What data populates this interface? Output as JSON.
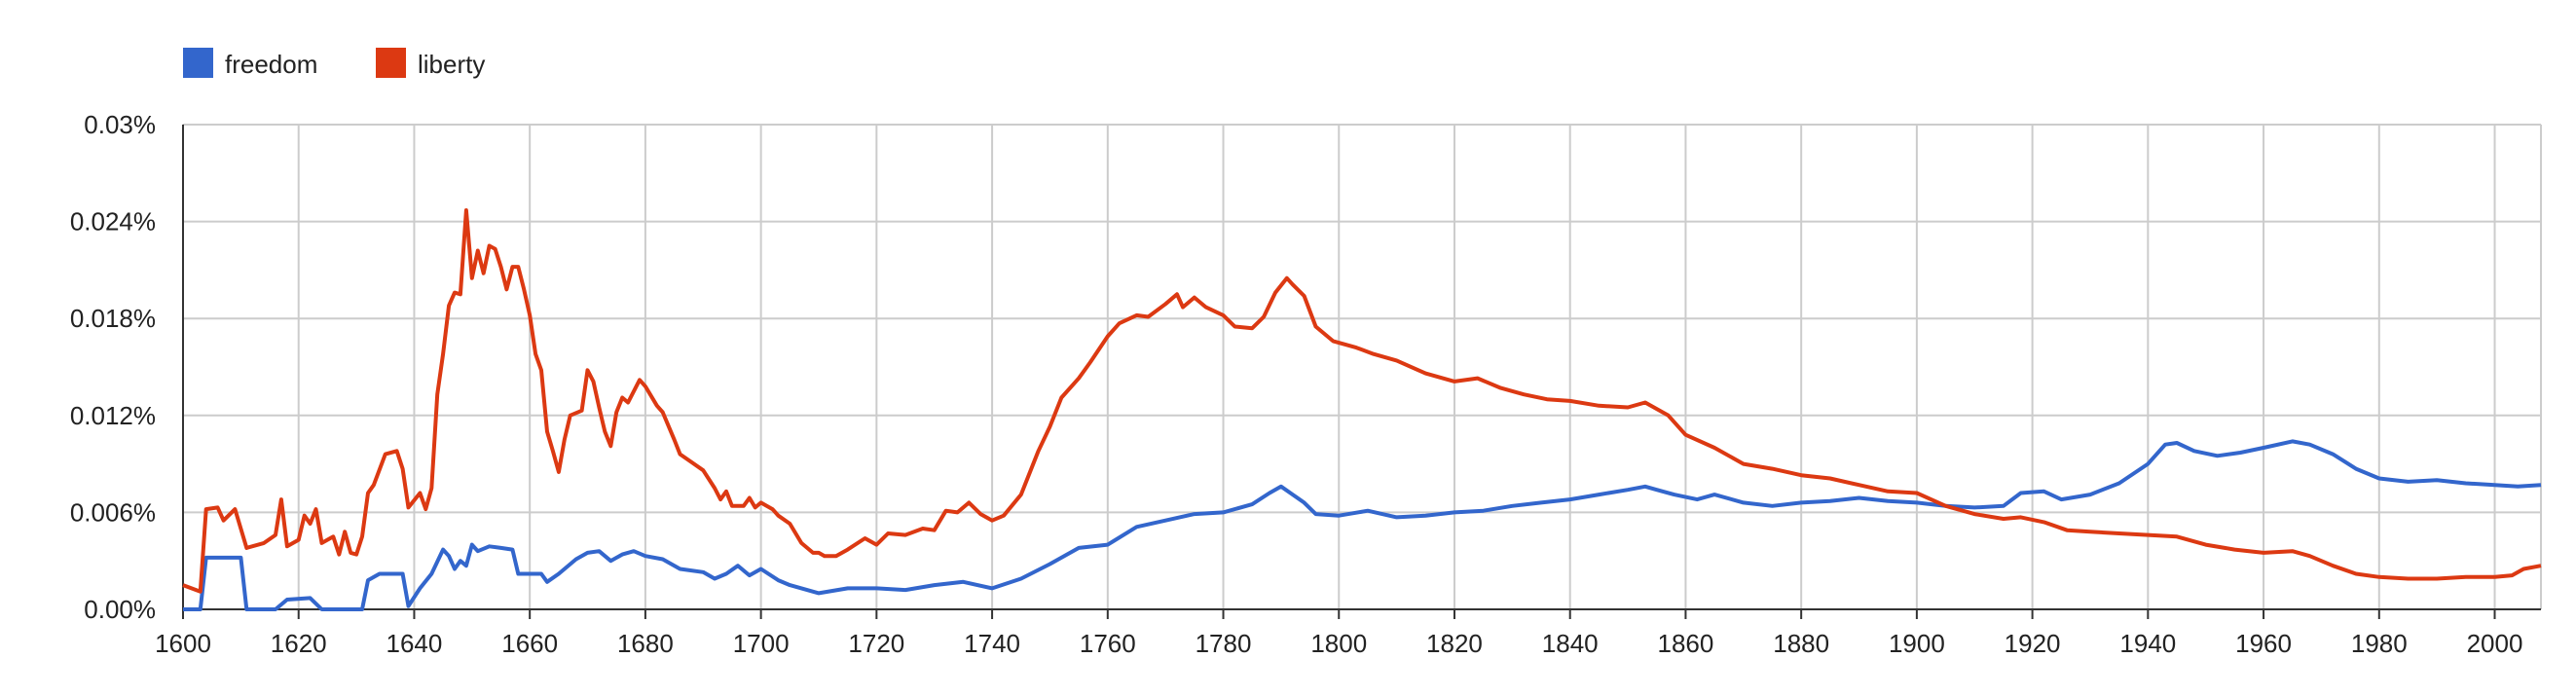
{
  "chart_data": {
    "type": "line",
    "title": "",
    "xlabel": "",
    "ylabel": "",
    "xlim": [
      1600,
      2008
    ],
    "ylim": [
      0,
      0.03
    ],
    "x_ticks": [
      1600,
      1620,
      1640,
      1660,
      1680,
      1700,
      1720,
      1740,
      1760,
      1780,
      1800,
      1820,
      1840,
      1860,
      1880,
      1900,
      1920,
      1940,
      1960,
      1980,
      2000
    ],
    "y_ticks": [
      0,
      0.006,
      0.012,
      0.018,
      0.024,
      0.03
    ],
    "y_tick_labels": [
      "0.00%",
      "0.006%",
      "0.012%",
      "0.018%",
      "0.024%",
      "0.03%"
    ],
    "grid": true,
    "legend_position": "top-left",
    "series": [
      {
        "name": "freedom",
        "color": "#3366cc",
        "points": [
          [
            1600,
            0.0
          ],
          [
            1603,
            0.0
          ],
          [
            1604,
            0.0032
          ],
          [
            1610,
            0.0032
          ],
          [
            1611,
            0.0
          ],
          [
            1616,
            0.0
          ],
          [
            1618,
            0.0006
          ],
          [
            1622,
            0.0007
          ],
          [
            1624,
            0.0
          ],
          [
            1631,
            0.0
          ],
          [
            1632,
            0.0018
          ],
          [
            1634,
            0.0022
          ],
          [
            1638,
            0.0022
          ],
          [
            1639,
            0.0002
          ],
          [
            1641,
            0.0013
          ],
          [
            1643,
            0.0022
          ],
          [
            1645,
            0.0037
          ],
          [
            1646,
            0.0033
          ],
          [
            1647,
            0.0025
          ],
          [
            1648,
            0.003
          ],
          [
            1649,
            0.0027
          ],
          [
            1650,
            0.004
          ],
          [
            1651,
            0.0036
          ],
          [
            1653,
            0.0039
          ],
          [
            1655,
            0.0038
          ],
          [
            1657,
            0.0037
          ],
          [
            1658,
            0.0022
          ],
          [
            1662,
            0.0022
          ],
          [
            1663,
            0.0017
          ],
          [
            1665,
            0.0022
          ],
          [
            1668,
            0.0031
          ],
          [
            1670,
            0.0035
          ],
          [
            1672,
            0.0036
          ],
          [
            1674,
            0.003
          ],
          [
            1676,
            0.0034
          ],
          [
            1678,
            0.0036
          ],
          [
            1680,
            0.0033
          ],
          [
            1683,
            0.0031
          ],
          [
            1686,
            0.0025
          ],
          [
            1690,
            0.0023
          ],
          [
            1692,
            0.0019
          ],
          [
            1694,
            0.0022
          ],
          [
            1696,
            0.0027
          ],
          [
            1698,
            0.0021
          ],
          [
            1700,
            0.0025
          ],
          [
            1703,
            0.0018
          ],
          [
            1705,
            0.0015
          ],
          [
            1710,
            0.001
          ],
          [
            1715,
            0.0013
          ],
          [
            1720,
            0.0013
          ],
          [
            1725,
            0.0012
          ],
          [
            1730,
            0.0015
          ],
          [
            1735,
            0.0017
          ],
          [
            1740,
            0.0013
          ],
          [
            1745,
            0.0019
          ],
          [
            1750,
            0.0028
          ],
          [
            1755,
            0.0038
          ],
          [
            1760,
            0.004
          ],
          [
            1765,
            0.0051
          ],
          [
            1770,
            0.0055
          ],
          [
            1775,
            0.0059
          ],
          [
            1780,
            0.006
          ],
          [
            1785,
            0.0065
          ],
          [
            1788,
            0.0072
          ],
          [
            1790,
            0.0076
          ],
          [
            1792,
            0.0071
          ],
          [
            1794,
            0.0066
          ],
          [
            1796,
            0.0059
          ],
          [
            1800,
            0.0058
          ],
          [
            1805,
            0.0061
          ],
          [
            1810,
            0.0057
          ],
          [
            1815,
            0.0058
          ],
          [
            1820,
            0.006
          ],
          [
            1825,
            0.0061
          ],
          [
            1830,
            0.0064
          ],
          [
            1835,
            0.0066
          ],
          [
            1840,
            0.0068
          ],
          [
            1845,
            0.0071
          ],
          [
            1850,
            0.0074
          ],
          [
            1853,
            0.0076
          ],
          [
            1855,
            0.0074
          ],
          [
            1858,
            0.0071
          ],
          [
            1862,
            0.0068
          ],
          [
            1865,
            0.0071
          ],
          [
            1870,
            0.0066
          ],
          [
            1875,
            0.0064
          ],
          [
            1880,
            0.0066
          ],
          [
            1885,
            0.0067
          ],
          [
            1890,
            0.0069
          ],
          [
            1895,
            0.0067
          ],
          [
            1900,
            0.0066
          ],
          [
            1905,
            0.0064
          ],
          [
            1910,
            0.0063
          ],
          [
            1915,
            0.0064
          ],
          [
            1918,
            0.0072
          ],
          [
            1922,
            0.0073
          ],
          [
            1925,
            0.0068
          ],
          [
            1930,
            0.0071
          ],
          [
            1935,
            0.0078
          ],
          [
            1940,
            0.009
          ],
          [
            1943,
            0.0102
          ],
          [
            1945,
            0.0103
          ],
          [
            1948,
            0.0098
          ],
          [
            1952,
            0.0095
          ],
          [
            1956,
            0.0097
          ],
          [
            1960,
            0.01
          ],
          [
            1965,
            0.0104
          ],
          [
            1968,
            0.0102
          ],
          [
            1972,
            0.0096
          ],
          [
            1976,
            0.0087
          ],
          [
            1980,
            0.0081
          ],
          [
            1985,
            0.0079
          ],
          [
            1990,
            0.008
          ],
          [
            1995,
            0.0078
          ],
          [
            2000,
            0.0077
          ],
          [
            2004,
            0.0076
          ],
          [
            2008,
            0.0077
          ]
        ]
      },
      {
        "name": "liberty",
        "color": "#dc3912",
        "points": [
          [
            1600,
            0.0015
          ],
          [
            1603,
            0.0011
          ],
          [
            1604,
            0.0062
          ],
          [
            1606,
            0.0063
          ],
          [
            1607,
            0.0055
          ],
          [
            1609,
            0.0062
          ],
          [
            1611,
            0.0038
          ],
          [
            1614,
            0.0041
          ],
          [
            1616,
            0.0046
          ],
          [
            1617,
            0.0068
          ],
          [
            1618,
            0.0039
          ],
          [
            1620,
            0.0043
          ],
          [
            1621,
            0.0058
          ],
          [
            1622,
            0.0053
          ],
          [
            1623,
            0.0062
          ],
          [
            1624,
            0.0041
          ],
          [
            1626,
            0.0045
          ],
          [
            1627,
            0.0034
          ],
          [
            1628,
            0.0048
          ],
          [
            1629,
            0.0035
          ],
          [
            1630,
            0.0034
          ],
          [
            1631,
            0.0045
          ],
          [
            1632,
            0.0072
          ],
          [
            1633,
            0.0077
          ],
          [
            1635,
            0.0096
          ],
          [
            1637,
            0.0098
          ],
          [
            1638,
            0.0087
          ],
          [
            1639,
            0.0063
          ],
          [
            1641,
            0.0072
          ],
          [
            1642,
            0.0062
          ],
          [
            1643,
            0.0075
          ],
          [
            1644,
            0.0133
          ],
          [
            1645,
            0.0158
          ],
          [
            1646,
            0.0188
          ],
          [
            1647,
            0.0196
          ],
          [
            1648,
            0.0195
          ],
          [
            1649,
            0.0247
          ],
          [
            1650,
            0.0205
          ],
          [
            1651,
            0.0222
          ],
          [
            1652,
            0.0208
          ],
          [
            1653,
            0.0225
          ],
          [
            1654,
            0.0223
          ],
          [
            1655,
            0.0212
          ],
          [
            1656,
            0.0198
          ],
          [
            1657,
            0.0212
          ],
          [
            1658,
            0.0212
          ],
          [
            1659,
            0.0198
          ],
          [
            1660,
            0.0182
          ],
          [
            1661,
            0.0158
          ],
          [
            1662,
            0.0148
          ],
          [
            1663,
            0.011
          ],
          [
            1664,
            0.0098
          ],
          [
            1665,
            0.0085
          ],
          [
            1666,
            0.0105
          ],
          [
            1667,
            0.012
          ],
          [
            1669,
            0.0123
          ],
          [
            1670,
            0.0148
          ],
          [
            1671,
            0.0141
          ],
          [
            1672,
            0.0125
          ],
          [
            1673,
            0.011
          ],
          [
            1674,
            0.0101
          ],
          [
            1675,
            0.0122
          ],
          [
            1676,
            0.0131
          ],
          [
            1677,
            0.0128
          ],
          [
            1679,
            0.0142
          ],
          [
            1680,
            0.0138
          ],
          [
            1682,
            0.0126
          ],
          [
            1683,
            0.0122
          ],
          [
            1685,
            0.0105
          ],
          [
            1686,
            0.0096
          ],
          [
            1688,
            0.0091
          ],
          [
            1690,
            0.0086
          ],
          [
            1692,
            0.0075
          ],
          [
            1693,
            0.0068
          ],
          [
            1694,
            0.0073
          ],
          [
            1695,
            0.0064
          ],
          [
            1697,
            0.0064
          ],
          [
            1698,
            0.0069
          ],
          [
            1699,
            0.0063
          ],
          [
            1700,
            0.0066
          ],
          [
            1702,
            0.0062
          ],
          [
            1703,
            0.0058
          ],
          [
            1705,
            0.0053
          ],
          [
            1707,
            0.0041
          ],
          [
            1709,
            0.0035
          ],
          [
            1710,
            0.0035
          ],
          [
            1711,
            0.0033
          ],
          [
            1713,
            0.0033
          ],
          [
            1715,
            0.0037
          ],
          [
            1718,
            0.0044
          ],
          [
            1720,
            0.004
          ],
          [
            1722,
            0.0047
          ],
          [
            1725,
            0.0046
          ],
          [
            1728,
            0.005
          ],
          [
            1730,
            0.0049
          ],
          [
            1732,
            0.0061
          ],
          [
            1734,
            0.006
          ],
          [
            1736,
            0.0066
          ],
          [
            1738,
            0.0059
          ],
          [
            1740,
            0.0055
          ],
          [
            1742,
            0.0058
          ],
          [
            1745,
            0.0071
          ],
          [
            1748,
            0.0098
          ],
          [
            1750,
            0.0113
          ],
          [
            1752,
            0.0131
          ],
          [
            1755,
            0.0143
          ],
          [
            1757,
            0.0153
          ],
          [
            1760,
            0.0169
          ],
          [
            1762,
            0.0177
          ],
          [
            1765,
            0.0182
          ],
          [
            1767,
            0.0181
          ],
          [
            1770,
            0.0189
          ],
          [
            1772,
            0.0195
          ],
          [
            1773,
            0.0187
          ],
          [
            1775,
            0.0193
          ],
          [
            1777,
            0.0187
          ],
          [
            1780,
            0.0182
          ],
          [
            1782,
            0.0175
          ],
          [
            1785,
            0.0174
          ],
          [
            1787,
            0.0181
          ],
          [
            1789,
            0.0196
          ],
          [
            1791,
            0.0205
          ],
          [
            1792,
            0.0201
          ],
          [
            1794,
            0.0194
          ],
          [
            1796,
            0.0175
          ],
          [
            1799,
            0.0166
          ],
          [
            1803,
            0.0162
          ],
          [
            1806,
            0.0158
          ],
          [
            1810,
            0.0154
          ],
          [
            1815,
            0.0146
          ],
          [
            1820,
            0.0141
          ],
          [
            1824,
            0.0143
          ],
          [
            1828,
            0.0137
          ],
          [
            1832,
            0.0133
          ],
          [
            1836,
            0.013
          ],
          [
            1840,
            0.0129
          ],
          [
            1845,
            0.0126
          ],
          [
            1850,
            0.0125
          ],
          [
            1853,
            0.0128
          ],
          [
            1857,
            0.012
          ],
          [
            1860,
            0.0108
          ],
          [
            1865,
            0.01
          ],
          [
            1870,
            0.009
          ],
          [
            1875,
            0.0087
          ],
          [
            1880,
            0.0083
          ],
          [
            1885,
            0.0081
          ],
          [
            1890,
            0.0077
          ],
          [
            1895,
            0.0073
          ],
          [
            1900,
            0.0072
          ],
          [
            1905,
            0.0064
          ],
          [
            1910,
            0.0059
          ],
          [
            1915,
            0.0056
          ],
          [
            1918,
            0.0057
          ],
          [
            1922,
            0.0054
          ],
          [
            1926,
            0.0049
          ],
          [
            1930,
            0.0048
          ],
          [
            1935,
            0.0047
          ],
          [
            1940,
            0.0046
          ],
          [
            1945,
            0.0045
          ],
          [
            1950,
            0.004
          ],
          [
            1955,
            0.0037
          ],
          [
            1960,
            0.0035
          ],
          [
            1965,
            0.0036
          ],
          [
            1968,
            0.0033
          ],
          [
            1972,
            0.0027
          ],
          [
            1976,
            0.0022
          ],
          [
            1980,
            0.002
          ],
          [
            1985,
            0.0019
          ],
          [
            1990,
            0.0019
          ],
          [
            1995,
            0.002
          ],
          [
            2000,
            0.002
          ],
          [
            2003,
            0.0021
          ],
          [
            2005,
            0.0025
          ],
          [
            2008,
            0.0027
          ]
        ]
      }
    ]
  }
}
